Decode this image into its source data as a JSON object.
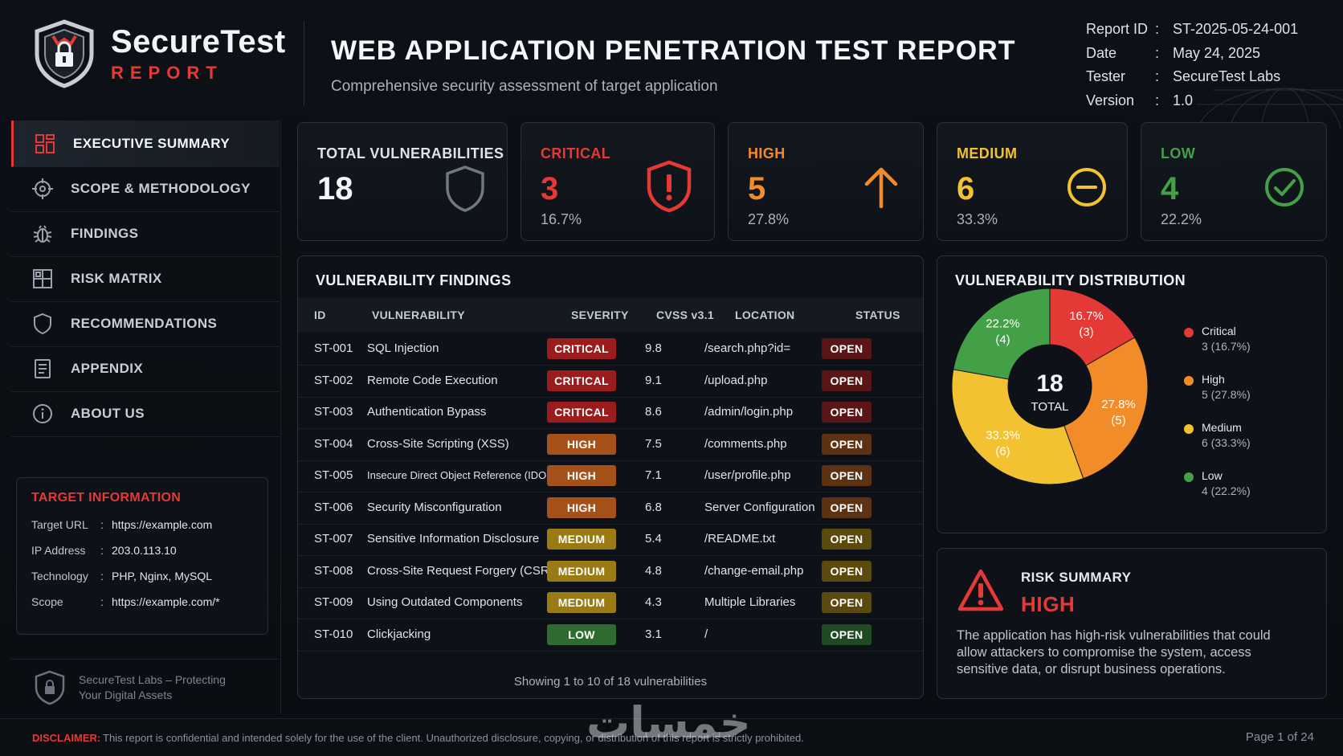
{
  "brand": {
    "name": "SecureTest",
    "sub": "REPORT"
  },
  "header": {
    "title": "WEB APPLICATION PENETRATION TEST REPORT",
    "subtitle": "Comprehensive security assessment of target application"
  },
  "meta": [
    {
      "key": "Report ID",
      "value": "ST-2025-05-24-001"
    },
    {
      "key": "Date",
      "value": "May 24, 2025"
    },
    {
      "key": "Tester",
      "value": "SecureTest Labs"
    },
    {
      "key": "Version",
      "value": "1.0"
    }
  ],
  "meta_colon": ":",
  "nav": [
    {
      "label": "EXECUTIVE SUMMARY",
      "icon": "grid-dashboard-icon",
      "active": true
    },
    {
      "label": "SCOPE & METHODOLOGY",
      "icon": "crosshair-icon"
    },
    {
      "label": "FINDINGS",
      "icon": "bug-icon"
    },
    {
      "label": "RISK MATRIX",
      "icon": "matrix-icon"
    },
    {
      "label": "RECOMMENDATIONS",
      "icon": "shield-outline-icon"
    },
    {
      "label": "APPENDIX",
      "icon": "document-icon"
    },
    {
      "label": "ABOUT US",
      "icon": "info-icon"
    }
  ],
  "target": {
    "title": "TARGET INFORMATION",
    "rows": [
      {
        "key": "Target URL",
        "value": "https://example.com"
      },
      {
        "key": "IP Address",
        "value": "203.0.113.10"
      },
      {
        "key": "Technology",
        "value": "PHP, Nginx, MySQL"
      },
      {
        "key": "Scope",
        "value": "https://example.com/*"
      }
    ]
  },
  "sidebar_footer": {
    "line1": "SecureTest Labs – Protecting",
    "line2": "Your Digital Assets"
  },
  "stats": {
    "total": {
      "label": "TOTAL VULNERABILITIES",
      "value": "18"
    },
    "critical": {
      "label": "CRITICAL",
      "value": "3",
      "pct": "16.7%",
      "color": "#e53935"
    },
    "high": {
      "label": "HIGH",
      "value": "5",
      "pct": "27.8%",
      "color": "#f28c28"
    },
    "medium": {
      "label": "MEDIUM",
      "value": "6",
      "pct": "33.3%",
      "color": "#f2c230"
    },
    "low": {
      "label": "LOW",
      "value": "4",
      "pct": "22.2%",
      "color": "#43a047"
    }
  },
  "findings": {
    "title": "VULNERABILITY FINDINGS",
    "columns": [
      "ID",
      "VULNERABILITY",
      "SEVERITY",
      "CVSS v3.1",
      "LOCATION",
      "STATUS"
    ],
    "rows": [
      {
        "id": "ST-001",
        "name": "SQL Injection",
        "severity": "CRITICAL",
        "cvss": "9.8",
        "location": "/search.php?id=",
        "status": "OPEN"
      },
      {
        "id": "ST-002",
        "name": "Remote Code Execution",
        "severity": "CRITICAL",
        "cvss": "9.1",
        "location": "/upload.php",
        "status": "OPEN"
      },
      {
        "id": "ST-003",
        "name": "Authentication Bypass",
        "severity": "CRITICAL",
        "cvss": "8.6",
        "location": "/admin/login.php",
        "status": "OPEN"
      },
      {
        "id": "ST-004",
        "name": "Cross-Site Scripting (XSS)",
        "severity": "HIGH",
        "cvss": "7.5",
        "location": "/comments.php",
        "status": "OPEN"
      },
      {
        "id": "ST-005",
        "name": "Insecure Direct Object Reference (IDOR)",
        "severity": "HIGH",
        "cvss": "7.1",
        "location": "/user/profile.php",
        "status": "OPEN"
      },
      {
        "id": "ST-006",
        "name": "Security Misconfiguration",
        "severity": "HIGH",
        "cvss": "6.8",
        "location": "Server Configuration",
        "status": "OPEN"
      },
      {
        "id": "ST-007",
        "name": "Sensitive Information Disclosure",
        "severity": "MEDIUM",
        "cvss": "5.4",
        "location": "/README.txt",
        "status": "OPEN"
      },
      {
        "id": "ST-008",
        "name": "Cross-Site Request Forgery (CSRF)",
        "severity": "MEDIUM",
        "cvss": "4.8",
        "location": "/change-email.php",
        "status": "OPEN"
      },
      {
        "id": "ST-009",
        "name": "Using Outdated Components",
        "severity": "MEDIUM",
        "cvss": "4.3",
        "location": "Multiple Libraries",
        "status": "OPEN"
      },
      {
        "id": "ST-010",
        "name": "Clickjacking",
        "severity": "LOW",
        "cvss": "3.1",
        "location": "/",
        "status": "OPEN"
      }
    ],
    "footer": "Showing 1 to 10 of 18 vulnerabilities"
  },
  "severity_colors": {
    "CRITICAL": {
      "bg": "#9b1c1c",
      "fg": "#ffffff"
    },
    "HIGH": {
      "bg": "#a4521a",
      "fg": "#ffffff"
    },
    "MEDIUM": {
      "bg": "#9a7a12",
      "fg": "#ffffff"
    },
    "LOW": {
      "bg": "#2e6b2f",
      "fg": "#ffffff"
    }
  },
  "status_colors": [
    {
      "bg": "#5a1616",
      "fg": "#ffffff"
    },
    {
      "bg": "#5a1616",
      "fg": "#ffffff"
    },
    {
      "bg": "#5a1616",
      "fg": "#ffffff"
    },
    {
      "bg": "#5c3212",
      "fg": "#ffffff"
    },
    {
      "bg": "#5c3212",
      "fg": "#ffffff"
    },
    {
      "bg": "#5c3212",
      "fg": "#ffffff"
    },
    {
      "bg": "#5a4a0e",
      "fg": "#ffffff"
    },
    {
      "bg": "#5a4a0e",
      "fg": "#ffffff"
    },
    {
      "bg": "#5a4a0e",
      "fg": "#ffffff"
    },
    {
      "bg": "#1f4a22",
      "fg": "#ffffff"
    }
  ],
  "distribution": {
    "title": "VULNERABILITY DISTRIBUTION",
    "center_value": "18",
    "center_label": "TOTAL",
    "legend": [
      {
        "name": "Critical",
        "detail": "3 (16.7%)",
        "color": "#e53935"
      },
      {
        "name": "High",
        "detail": "5 (27.8%)",
        "color": "#f28c28"
      },
      {
        "name": "Medium",
        "detail": "6 (33.3%)",
        "color": "#f2c230"
      },
      {
        "name": "Low",
        "detail": "4 (22.2%)",
        "color": "#43a047"
      }
    ]
  },
  "chart_data": {
    "type": "pie",
    "title": "VULNERABILITY DISTRIBUTION",
    "categories": [
      "Critical",
      "High",
      "Medium",
      "Low"
    ],
    "values": [
      3,
      5,
      6,
      4
    ],
    "percent_labels": [
      "16.7%",
      "27.8%",
      "33.3%",
      "22.2%"
    ],
    "count_labels": [
      "(3)",
      "(5)",
      "(6)",
      "(4)"
    ],
    "colors": [
      "#e53935",
      "#f28c28",
      "#f2c230",
      "#43a047"
    ],
    "legend_position": "right"
  },
  "risk": {
    "label": "RISK SUMMARY",
    "level": "HIGH",
    "text": "The application has high-risk vulnerabilities that could allow attackers to compromise the system, access sensitive data, or disrupt business operations."
  },
  "footer": {
    "disclaimer_key": "DISCLAIMER:",
    "disclaimer_text": "This report is confidential and intended solely for the use of the client. Unauthorized disclosure, copying, or distribution of this report is strictly prohibited.",
    "page": "Page 1 of 24"
  },
  "watermark": "خمسات"
}
